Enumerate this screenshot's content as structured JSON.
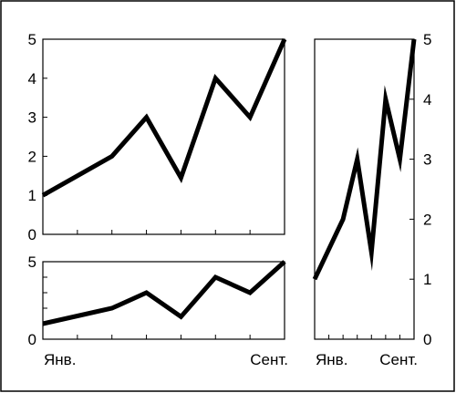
{
  "chart_data": [
    {
      "type": "line",
      "x": [
        "Янв.",
        "",
        "",
        "",
        "",
        "",
        "",
        "Сент."
      ],
      "series": [
        {
          "values": [
            1,
            1.5,
            2,
            3,
            1.45,
            4,
            3,
            5
          ]
        }
      ],
      "ylim": [
        0,
        5
      ],
      "yticks": [
        "0",
        "1",
        "2",
        "3",
        "4",
        "5"
      ],
      "xtick_labels": [
        "",
        ""
      ],
      "color": "#000000"
    },
    {
      "type": "line",
      "x": [
        "Янв.",
        "",
        "",
        "",
        "",
        "",
        "",
        "Сент."
      ],
      "series": [
        {
          "values": [
            1,
            1.5,
            2,
            3,
            1.45,
            4,
            3,
            5
          ]
        }
      ],
      "ylim": [
        0,
        5
      ],
      "yticks": [
        "0",
        "5"
      ],
      "xtick_labels": [
        "Янв.",
        "Сент."
      ],
      "color": "#000000"
    },
    {
      "type": "line",
      "x": [
        "Янв.",
        "",
        "",
        "",
        "",
        "",
        "",
        "Сент."
      ],
      "series": [
        {
          "values": [
            1,
            1.5,
            2,
            3,
            1.45,
            4,
            3,
            5
          ]
        }
      ],
      "ylim": [
        0,
        5
      ],
      "yticks": [
        "0",
        "1",
        "2",
        "3",
        "4",
        "5"
      ],
      "ytick_side": "right",
      "xtick_labels": [
        "Янв.",
        "Сент."
      ],
      "color": "#000000"
    }
  ]
}
